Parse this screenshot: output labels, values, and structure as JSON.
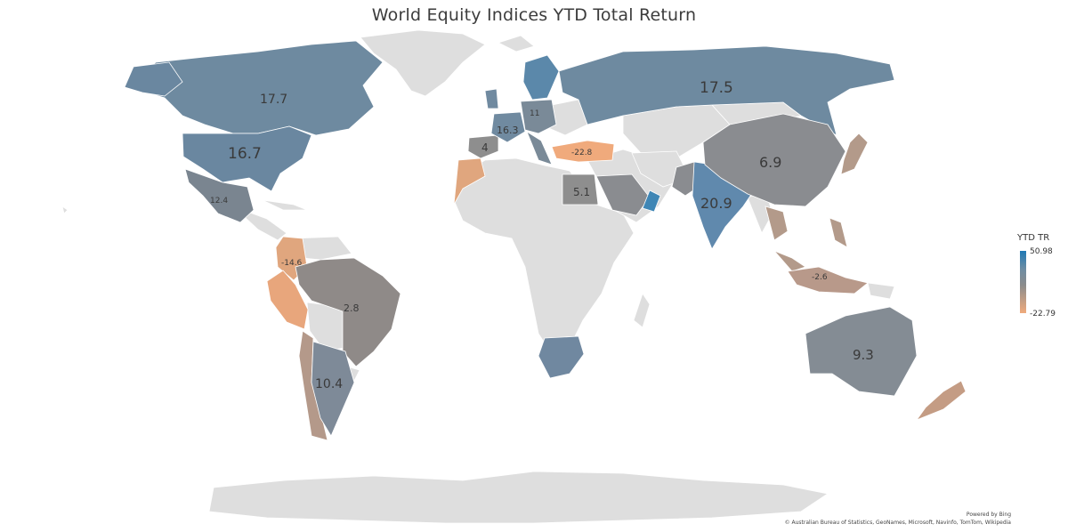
{
  "title": "World Equity Indices YTD Total Return",
  "legend": {
    "title": "YTD TR",
    "max": "50.98",
    "min": "-22.79",
    "colors": {
      "high": "#1f78b4",
      "mid": "#8a8a8a",
      "low": "#f0aa7c"
    }
  },
  "credits": {
    "powered_by": "Powered by Bing",
    "sources": "© Australian Bureau of Statistics, GeoNames, Microsoft, Navinfo, TomTom, Wikipedia"
  },
  "colors": {
    "background": "#ffffff",
    "no_data": "#dedede",
    "sea": "#ffffff"
  },
  "regions": [
    {
      "id": "canada",
      "label": "17.7",
      "color": "#6e8aa0"
    },
    {
      "id": "usa",
      "label": "16.7",
      "color": "#6a87a0"
    },
    {
      "id": "mexico",
      "label": "12.4",
      "color": "#7a8590"
    },
    {
      "id": "colombia",
      "label": "-14.6",
      "color": "#e0a67e"
    },
    {
      "id": "peru",
      "label": "",
      "color": "#e8a67c"
    },
    {
      "id": "chile",
      "label": "",
      "color": "#b4998a"
    },
    {
      "id": "brazil",
      "label": "2.8",
      "color": "#8f8a88"
    },
    {
      "id": "argentina",
      "label": "10.4",
      "color": "#7e8a98"
    },
    {
      "id": "portugal_spain",
      "label": "4",
      "color": "#8e8e8e"
    },
    {
      "id": "france",
      "label": "16.3",
      "color": "#708aa0"
    },
    {
      "id": "central_europe",
      "label": "11",
      "color": "#7a8a98"
    },
    {
      "id": "nordics",
      "label": "",
      "color": "#5b88aa"
    },
    {
      "id": "russia",
      "label": "17.5",
      "color": "#6e8aa0"
    },
    {
      "id": "turkey",
      "label": "-22.8",
      "color": "#f0aa7c"
    },
    {
      "id": "egypt",
      "label": "5.1",
      "color": "#8e8e8e"
    },
    {
      "id": "saudi",
      "label": "",
      "color": "#8a8c90"
    },
    {
      "id": "oman",
      "label": "",
      "color": "#3f86b5"
    },
    {
      "id": "pakistan",
      "label": "",
      "color": "#8a8c90"
    },
    {
      "id": "india",
      "label": "20.9",
      "color": "#6089ad"
    },
    {
      "id": "china",
      "label": "6.9",
      "color": "#8a8c90"
    },
    {
      "id": "japan",
      "label": "",
      "color": "#b39a8a"
    },
    {
      "id": "southeast_asia",
      "label": "",
      "color": "#b39a8a"
    },
    {
      "id": "indonesia",
      "label": "-2.6",
      "color": "#b8998a"
    },
    {
      "id": "australia",
      "label": "9.3",
      "color": "#848c94"
    },
    {
      "id": "new_zealand",
      "label": "",
      "color": "#c49c84"
    },
    {
      "id": "south_africa",
      "label": "",
      "color": "#7088a0"
    }
  ]
}
